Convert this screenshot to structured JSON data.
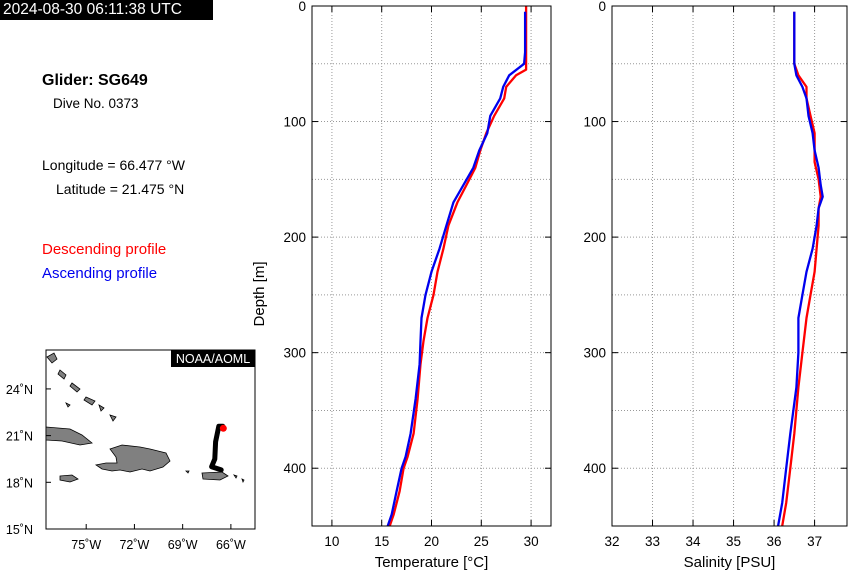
{
  "header": {
    "timestamp": "2024-08-30 06:11:38 UTC"
  },
  "info": {
    "glider": "Glider: SG649",
    "dive": "Dive No. 0373",
    "longitude": "Longitude = 66.477 °W",
    "latitude": "Latitude = 21.475 °N"
  },
  "legend": {
    "descending": "Descending profile",
    "ascending": "Ascending profile"
  },
  "colors": {
    "descending": "#ff0000",
    "ascending": "#0000ee",
    "land": "#808080",
    "track": "#000000",
    "glider_position": "#ff0000"
  },
  "map": {
    "badge": "NOAA/AOML",
    "lon_ticks": [
      "75˚W",
      "72˚W",
      "69˚W",
      "66˚W"
    ],
    "lat_ticks": [
      "24˚N",
      "21˚N",
      "18˚N",
      "15˚N"
    ],
    "lon_range": [
      -77.5,
      -64.5
    ],
    "lat_range": [
      15,
      26.5
    ],
    "track": [
      [
        -66.5,
        21.6
      ],
      [
        -66.75,
        21.6
      ],
      [
        -66.95,
        20.6
      ],
      [
        -67.0,
        19.5
      ],
      [
        -67.2,
        19.0
      ],
      [
        -66.6,
        18.8
      ]
    ],
    "current_position": [
      -66.47,
      21.47
    ]
  },
  "chart_data": [
    {
      "type": "line",
      "title": "",
      "xlabel": "Temperature [°C]",
      "ylabel": "Depth [m]",
      "xlim": [
        8,
        32
      ],
      "ylim": [
        450,
        0
      ],
      "x_ticks": [
        10,
        15,
        20,
        25,
        30
      ],
      "y_ticks": [
        0,
        100,
        200,
        300,
        400
      ],
      "grid": true,
      "series": [
        {
          "name": "Descending profile",
          "color": "#ff0000",
          "points": [
            [
              29.5,
              0
            ],
            [
              29.5,
              40
            ],
            [
              29.5,
              55
            ],
            [
              28.5,
              60
            ],
            [
              27.5,
              70
            ],
            [
              27.3,
              80
            ],
            [
              26.3,
              95
            ],
            [
              25.5,
              110
            ],
            [
              24.9,
              125
            ],
            [
              24.4,
              140
            ],
            [
              23.5,
              155
            ],
            [
              22.6,
              170
            ],
            [
              21.7,
              190
            ],
            [
              21.2,
              210
            ],
            [
              20.6,
              230
            ],
            [
              20.2,
              250
            ],
            [
              19.6,
              270
            ],
            [
              19.2,
              290
            ],
            [
              18.9,
              310
            ],
            [
              18.6,
              340
            ],
            [
              18.2,
              370
            ],
            [
              17.6,
              390
            ],
            [
              17.2,
              400
            ],
            [
              16.8,
              420
            ],
            [
              16.2,
              440
            ],
            [
              15.8,
              450
            ]
          ]
        },
        {
          "name": "Ascending profile",
          "color": "#0000ee",
          "points": [
            [
              29.4,
              5
            ],
            [
              29.4,
              40
            ],
            [
              29.3,
              50
            ],
            [
              27.8,
              60
            ],
            [
              27.2,
              70
            ],
            [
              26.9,
              80
            ],
            [
              25.9,
              95
            ],
            [
              25.6,
              110
            ],
            [
              24.8,
              125
            ],
            [
              24.2,
              140
            ],
            [
              23.2,
              155
            ],
            [
              22.2,
              170
            ],
            [
              21.5,
              190
            ],
            [
              20.8,
              210
            ],
            [
              20.0,
              230
            ],
            [
              19.4,
              250
            ],
            [
              19.0,
              270
            ],
            [
              18.9,
              290
            ],
            [
              18.8,
              310
            ],
            [
              18.4,
              340
            ],
            [
              17.9,
              370
            ],
            [
              17.4,
              390
            ],
            [
              17.0,
              400
            ],
            [
              16.5,
              420
            ],
            [
              16.0,
              440
            ],
            [
              15.6,
              450
            ]
          ]
        }
      ]
    },
    {
      "type": "line",
      "title": "",
      "xlabel": "Salinity [PSU]",
      "ylabel": "",
      "xlim": [
        32,
        37.8
      ],
      "ylim": [
        450,
        0
      ],
      "x_ticks": [
        32,
        33,
        34,
        35,
        36,
        37
      ],
      "y_ticks": [
        0,
        100,
        200,
        300,
        400
      ],
      "grid": true,
      "series": [
        {
          "name": "Descending profile",
          "color": "#ff0000",
          "points": [
            [
              36.5,
              5
            ],
            [
              36.5,
              30
            ],
            [
              36.5,
              50
            ],
            [
              36.6,
              60
            ],
            [
              36.8,
              70
            ],
            [
              36.8,
              80
            ],
            [
              36.9,
              95
            ],
            [
              37.0,
              110
            ],
            [
              37.0,
              125
            ],
            [
              37.0,
              135
            ],
            [
              37.1,
              150
            ],
            [
              37.15,
              165
            ],
            [
              37.1,
              175
            ],
            [
              37.1,
              190
            ],
            [
              37.05,
              210
            ],
            [
              37.0,
              230
            ],
            [
              36.9,
              250
            ],
            [
              36.8,
              270
            ],
            [
              36.7,
              300
            ],
            [
              36.6,
              330
            ],
            [
              36.5,
              370
            ],
            [
              36.4,
              400
            ],
            [
              36.3,
              430
            ],
            [
              36.2,
              450
            ]
          ]
        },
        {
          "name": "Ascending profile",
          "color": "#0000ee",
          "points": [
            [
              36.5,
              5
            ],
            [
              36.5,
              30
            ],
            [
              36.5,
              50
            ],
            [
              36.55,
              60
            ],
            [
              36.7,
              70
            ],
            [
              36.8,
              80
            ],
            [
              36.85,
              95
            ],
            [
              36.95,
              110
            ],
            [
              37.0,
              125
            ],
            [
              37.1,
              140
            ],
            [
              37.15,
              155
            ],
            [
              37.2,
              165
            ],
            [
              37.1,
              175
            ],
            [
              37.05,
              190
            ],
            [
              36.95,
              210
            ],
            [
              36.8,
              230
            ],
            [
              36.7,
              250
            ],
            [
              36.6,
              270
            ],
            [
              36.6,
              300
            ],
            [
              36.55,
              330
            ],
            [
              36.4,
              370
            ],
            [
              36.3,
              400
            ],
            [
              36.2,
              430
            ],
            [
              36.1,
              450
            ]
          ]
        }
      ]
    }
  ]
}
